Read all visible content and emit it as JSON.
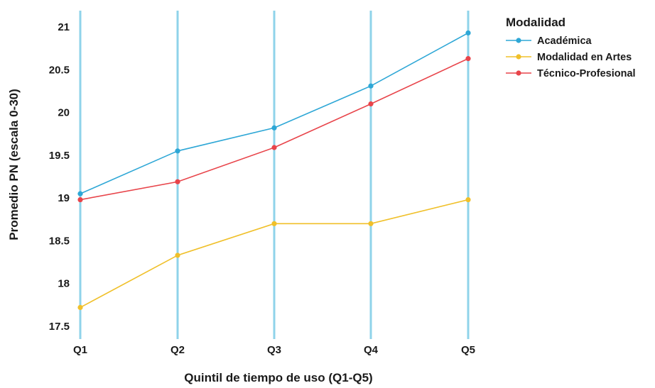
{
  "chart_data": {
    "type": "line",
    "title": "",
    "xlabel": "Quintil de tiempo de uso (Q1-Q5)",
    "ylabel": "Promedio PN (escala 0-30)",
    "categories": [
      "Q1",
      "Q2",
      "Q3",
      "Q4",
      "Q5"
    ],
    "ylim": [
      17.5,
      21
    ],
    "yticks": [
      "17.5",
      "18",
      "18.5",
      "19",
      "19.5",
      "20",
      "20.5",
      "21"
    ],
    "grid": "vertical",
    "grid_color": "#8fd3ea",
    "legend_title": "Modalidad",
    "legend_position": "top-right",
    "series": [
      {
        "name": "Académica",
        "color": "#2ea7d6",
        "values": [
          19.05,
          19.55,
          19.82,
          20.31,
          20.93
        ]
      },
      {
        "name": "Modalidad en Artes",
        "color": "#f0c02a",
        "values": [
          17.72,
          18.33,
          18.7,
          18.7,
          18.98
        ]
      },
      {
        "name": "Técnico-Profesional",
        "color": "#e8444a",
        "values": [
          18.98,
          19.19,
          19.59,
          20.1,
          20.63
        ]
      }
    ]
  }
}
